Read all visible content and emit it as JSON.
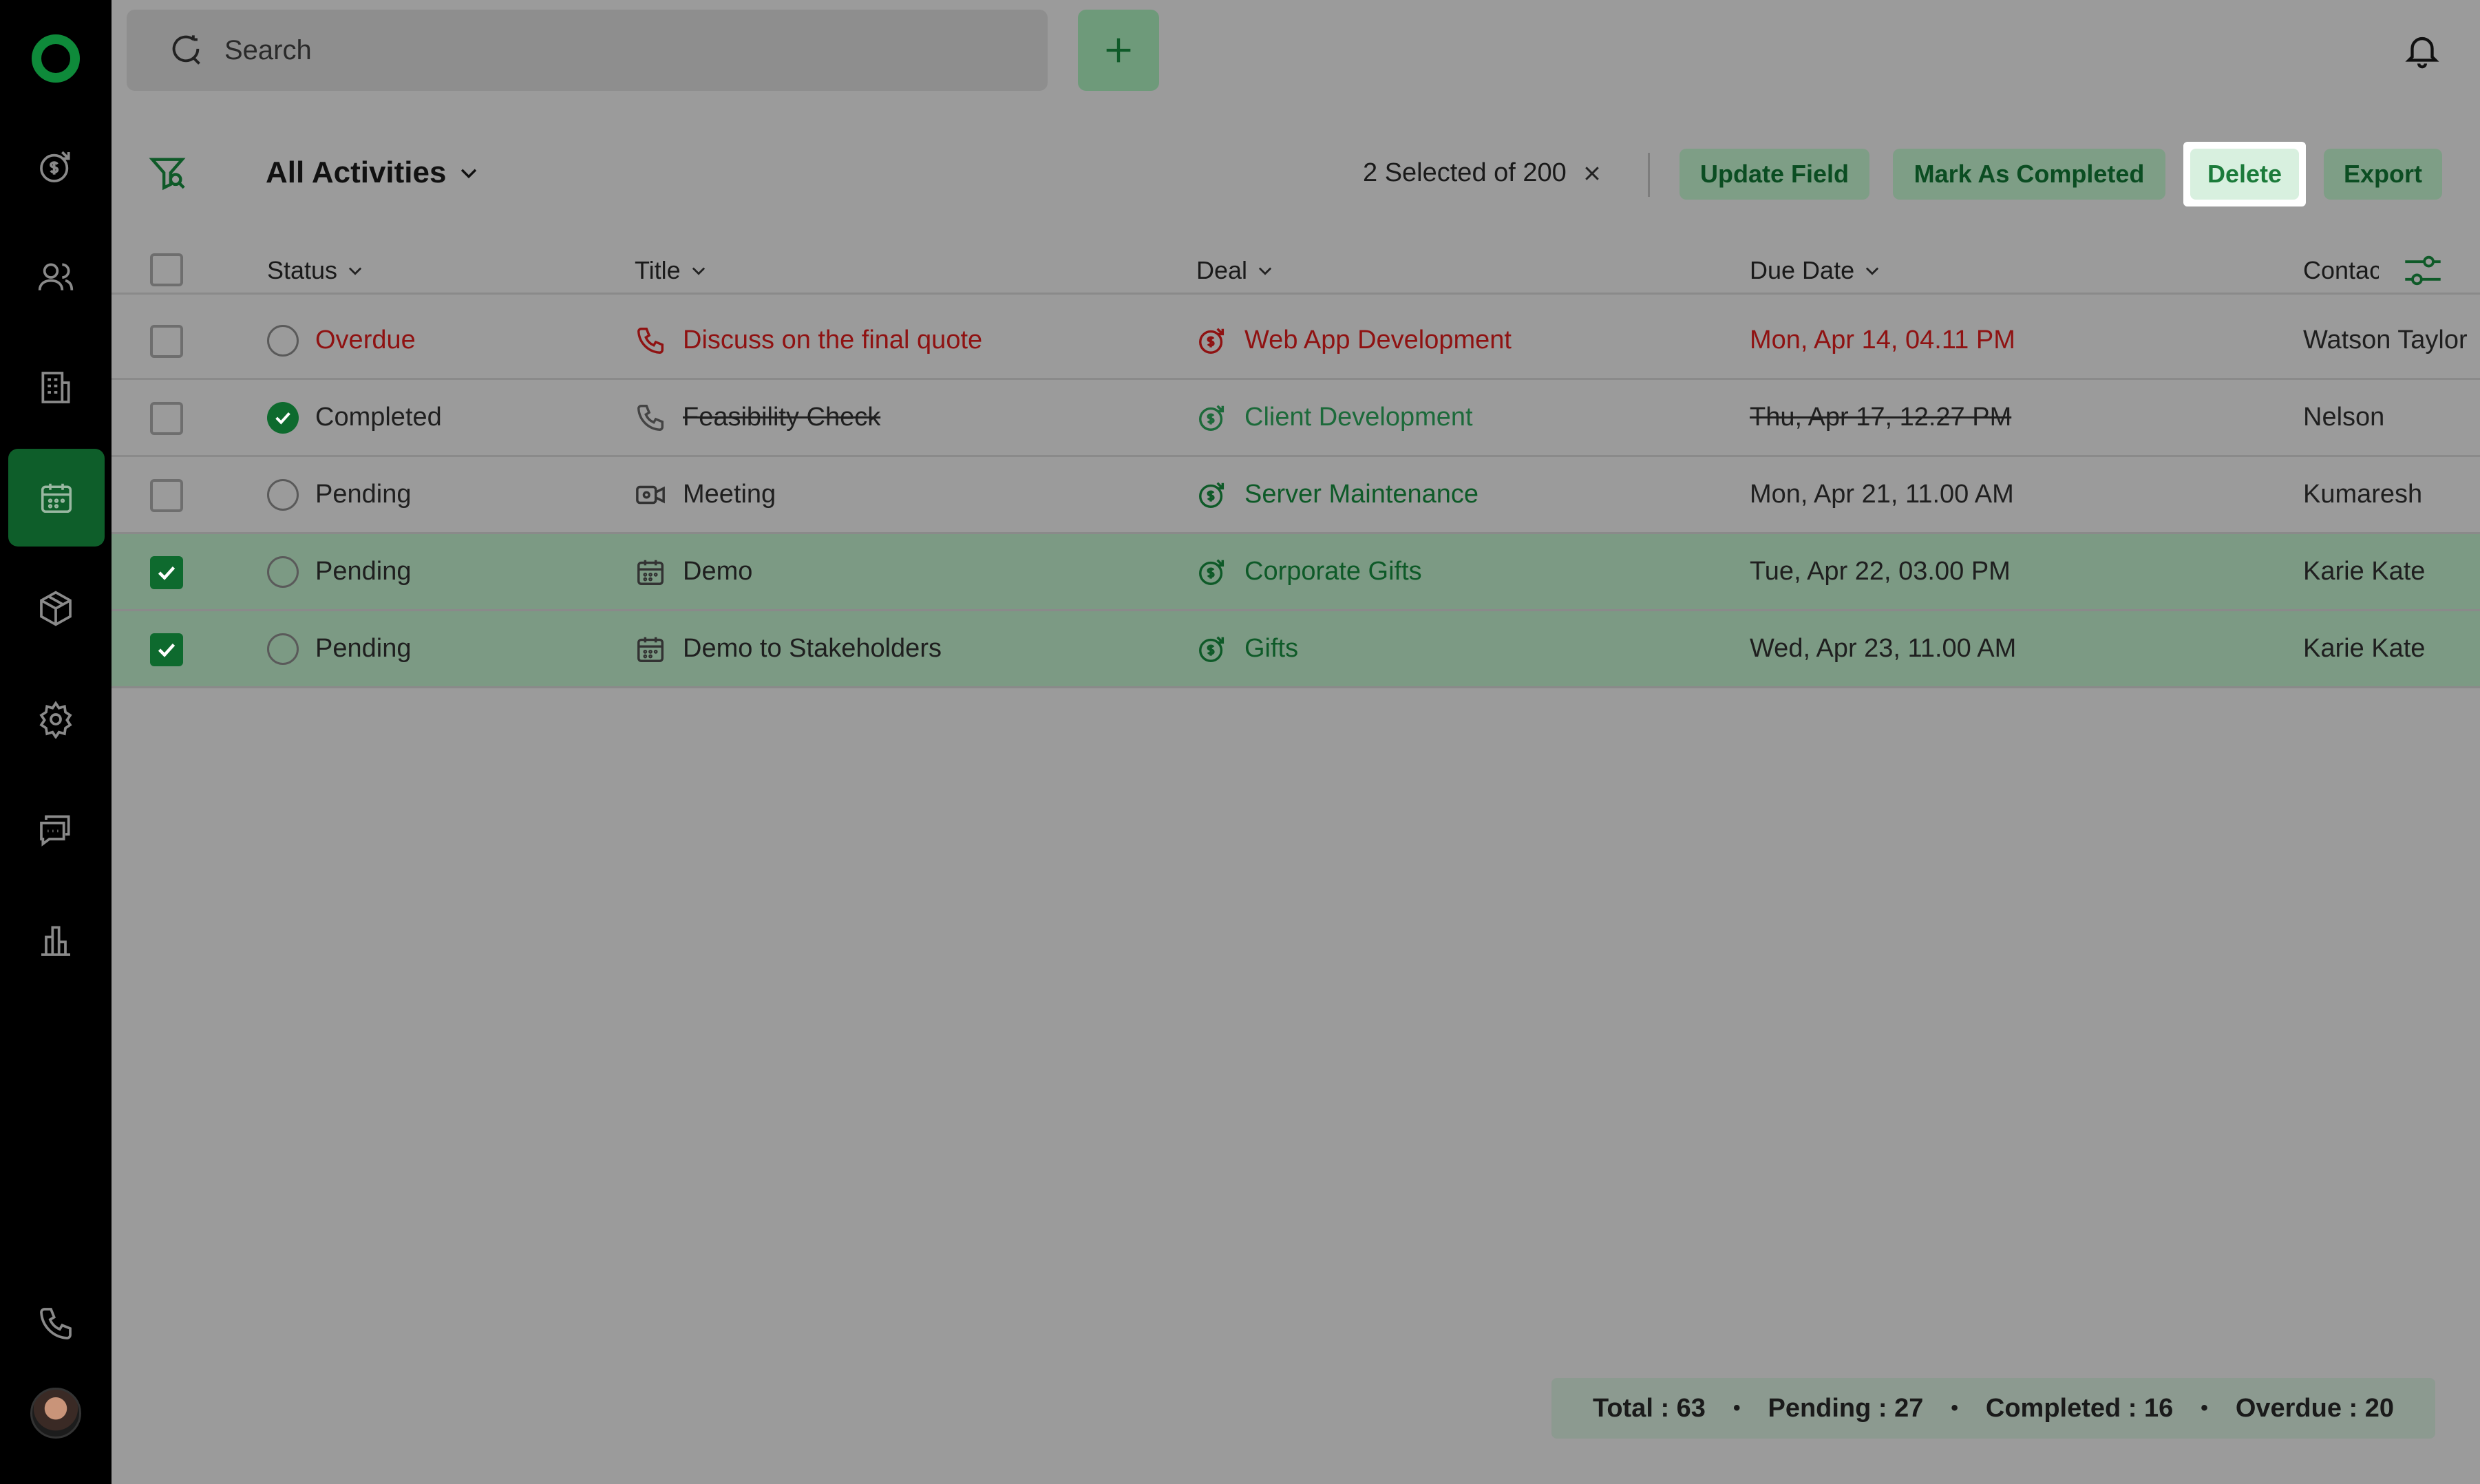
{
  "search": {
    "placeholder": "Search"
  },
  "toolbar": {
    "view_title": "All Activities",
    "selection_text": "2 Selected of 200",
    "update_field": "Update Field",
    "mark_completed": "Mark As Completed",
    "delete": "Delete",
    "export": "Export"
  },
  "columns": {
    "status": "Status",
    "title": "Title",
    "deal": "Deal",
    "due_date": "Due Date",
    "contact": "Contac"
  },
  "rows": [
    {
      "status": "Overdue",
      "title": "Discuss on the final quote",
      "deal": "Web App Development",
      "due": "Mon, Apr 14, 04.11 PM",
      "contact": "Watson Taylor"
    },
    {
      "status": "Completed",
      "title": "Feasibility Check",
      "deal": "Client Development",
      "due": "Thu, Apr 17, 12.27 PM",
      "contact": "Nelson"
    },
    {
      "status": "Pending",
      "title": "Meeting",
      "deal": "Server Maintenance",
      "due": "Mon, Apr 21, 11.00 AM",
      "contact": "Kumaresh"
    },
    {
      "status": "Pending",
      "title": "Demo",
      "deal": "Corporate Gifts",
      "due": "Tue, Apr 22, 03.00 PM",
      "contact": "Karie Kate"
    },
    {
      "status": "Pending",
      "title": "Demo to Stakeholders",
      "deal": "Gifts",
      "due": "Wed, Apr 23, 11.00 AM",
      "contact": "Karie Kate"
    }
  ],
  "summary": {
    "total": "Total : 63",
    "pending": "Pending : 27",
    "completed": "Completed : 16",
    "overdue": "Overdue : 20"
  },
  "icons": {
    "sidebar": [
      "logo-icon",
      "deals-icon",
      "contacts-icon",
      "companies-icon",
      "activities-icon",
      "products-icon",
      "settings-icon",
      "chat-icon",
      "reports-icon",
      "phone-icon",
      "avatar"
    ]
  },
  "colors": {
    "accent": "#0e6a2e",
    "overdue": "#8f1212",
    "sidebar": "#000000"
  }
}
